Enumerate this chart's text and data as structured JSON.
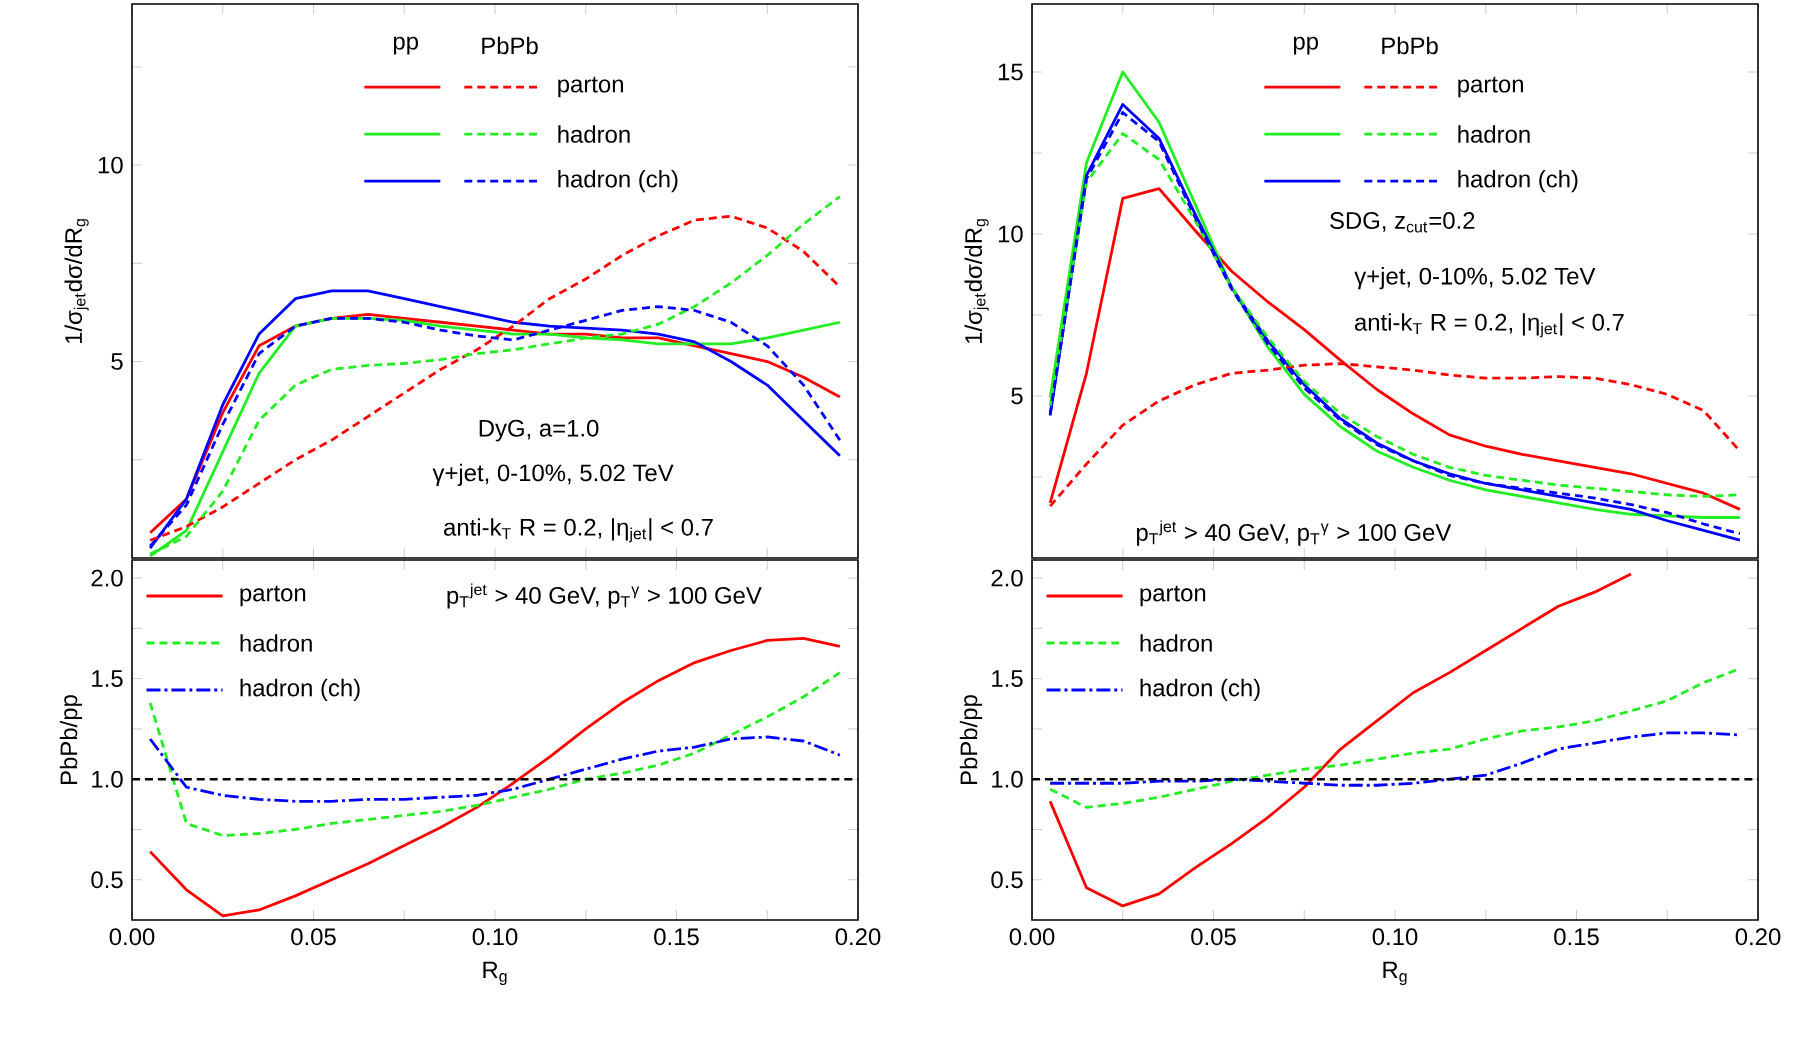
{
  "chart_data": [
    {
      "type": "line",
      "ylabel": "1/σ$_{jet}$dσ/dR$_{g}$",
      "x": [
        0.005,
        0.015,
        0.025,
        0.035,
        0.045,
        0.055,
        0.065,
        0.075,
        0.085,
        0.095,
        0.105,
        0.115,
        0.125,
        0.135,
        0.145,
        0.155,
        0.165,
        0.175,
        0.185,
        0.195
      ],
      "xlim": [
        0,
        0.2
      ],
      "ylim": [
        0,
        14.1
      ],
      "tick_labels": "y",
      "legend": "top",
      "xticks": [
        0,
        {
          "value": 0.025,
          "label": null
        },
        0.05,
        {
          "value": 0.075,
          "label": null
        },
        0.1,
        {
          "value": 0.125,
          "label": null
        },
        0.15,
        {
          "value": 0.175,
          "label": null
        },
        0.2
      ],
      "yticks": [
        {
          "value": 2.5,
          "label": null
        },
        5,
        {
          "value": 7.5,
          "label": null
        },
        10,
        {
          "value": 12.5,
          "label": null
        }
      ],
      "annotations": [
        "pp",
        "PbPb",
        "DyG, a=1.0",
        "γ+jet, 0-10%, 5.02 TeV",
        "anti-k$_{T}$ R = 0.2, |η$_{jet}$| < 0.7"
      ],
      "series": [
        {
          "name": "parton",
          "color": "#ff0000",
          "line_style": "solid",
          "values": [
            0.64,
            1.5,
            3.7,
            5.4,
            5.9,
            6.1,
            6.2,
            6.1,
            6.0,
            5.9,
            5.8,
            5.7,
            5.7,
            5.6,
            5.6,
            5.4,
            5.2,
            5.0,
            4.6,
            4.1
          ]
        },
        {
          "name": "hadron",
          "color": "#22ee22",
          "line_style": "solid",
          "values": [
            0.05,
            0.7,
            2.7,
            4.7,
            5.9,
            6.1,
            6.1,
            6.05,
            5.9,
            5.8,
            5.7,
            5.7,
            5.6,
            5.55,
            5.45,
            5.45,
            5.45,
            5.6,
            5.8,
            6.0
          ]
        },
        {
          "name": "hadron (ch)",
          "color": "#0000ff",
          "line_style": "solid",
          "values": [
            0.25,
            1.5,
            3.9,
            5.7,
            6.6,
            6.8,
            6.8,
            6.6,
            6.4,
            6.2,
            6.0,
            5.9,
            5.85,
            5.8,
            5.7,
            5.5,
            5.0,
            4.4,
            3.5,
            2.6
          ]
        },
        {
          "color": "#ff0000",
          "line_style": "dashed",
          "values": [
            0.45,
            0.8,
            1.3,
            1.9,
            2.5,
            3.0,
            3.6,
            4.2,
            4.8,
            5.3,
            5.9,
            6.6,
            7.1,
            7.7,
            8.2,
            8.6,
            8.7,
            8.4,
            7.8,
            6.9
          ]
        },
        {
          "color": "#22ee22",
          "line_style": "dashed",
          "values": [
            0.1,
            0.55,
            1.7,
            3.5,
            4.4,
            4.8,
            4.9,
            4.95,
            5.05,
            5.2,
            5.3,
            5.45,
            5.6,
            5.7,
            5.95,
            6.4,
            7.0,
            7.7,
            8.5,
            9.2
          ]
        },
        {
          "color": "#0000ff",
          "line_style": "dashed",
          "values": [
            0.3,
            1.35,
            3.4,
            5.2,
            5.9,
            6.1,
            6.1,
            6.0,
            5.8,
            5.65,
            5.55,
            5.8,
            6.05,
            6.3,
            6.4,
            6.3,
            6.0,
            5.4,
            4.4,
            3.0
          ]
        }
      ]
    },
    {
      "type": "line",
      "ylabel": "1/σ$_{jet}$dσ/dR$_{g}$",
      "x": [
        0.005,
        0.015,
        0.025,
        0.035,
        0.045,
        0.055,
        0.065,
        0.075,
        0.085,
        0.095,
        0.105,
        0.115,
        0.125,
        0.135,
        0.145,
        0.155,
        0.165,
        0.175,
        0.185,
        0.195
      ],
      "xlim": [
        0,
        0.2
      ],
      "ylim": [
        0,
        17.1
      ],
      "tick_labels": "y",
      "legend": "top",
      "xticks": [
        0,
        {
          "value": 0.025,
          "label": null
        },
        0.05,
        {
          "value": 0.075,
          "label": null
        },
        0.1,
        {
          "value": 0.125,
          "label": null
        },
        0.15,
        {
          "value": 0.175,
          "label": null
        },
        0.2
      ],
      "yticks": [
        {
          "value": 2.5,
          "label": null
        },
        5,
        {
          "value": 7.5,
          "label": null
        },
        10,
        {
          "value": 12.5,
          "label": null
        },
        15
      ],
      "annotations": [
        "pp",
        "PbPb",
        "SDG, z$_{cut}$=0.2",
        "γ+jet, 0-10%, 5.02 TeV",
        "anti-k$_{T}$ R = 0.2, |η$_{jet}$| < 0.7",
        "p$_{T}$$^{jet}$ > 40 GeV, p$_{T}$$^{γ}$ > 100 GeV"
      ],
      "series": [
        {
          "name": "parton",
          "color": "#ff0000",
          "line_style": "solid",
          "values": [
            1.7,
            5.7,
            11.1,
            11.4,
            10.1,
            8.85,
            7.9,
            7.05,
            6.1,
            5.2,
            4.45,
            3.8,
            3.45,
            3.2,
            3.0,
            2.8,
            2.6,
            2.3,
            2.0,
            1.5
          ]
        },
        {
          "name": "hadron",
          "color": "#22ee22",
          "line_style": "solid",
          "values": [
            4.95,
            12.2,
            15.0,
            13.45,
            10.9,
            8.35,
            6.5,
            5.05,
            4.05,
            3.3,
            2.8,
            2.4,
            2.1,
            1.9,
            1.7,
            1.5,
            1.35,
            1.3,
            1.25,
            1.25
          ]
        },
        {
          "name": "hadron (ch)",
          "color": "#0000ff",
          "line_style": "solid",
          "values": [
            4.4,
            11.8,
            14.0,
            12.95,
            10.6,
            8.35,
            6.7,
            5.35,
            4.3,
            3.55,
            3.0,
            2.6,
            2.3,
            2.1,
            1.9,
            1.7,
            1.5,
            1.15,
            0.85,
            0.55
          ]
        },
        {
          "color": "#ff0000",
          "line_style": "dashed",
          "values": [
            1.6,
            2.9,
            4.1,
            4.85,
            5.35,
            5.7,
            5.8,
            5.95,
            6.0,
            5.9,
            5.8,
            5.65,
            5.55,
            5.55,
            5.6,
            5.55,
            5.35,
            5.05,
            4.55,
            3.3
          ]
        },
        {
          "color": "#22ee22",
          "line_style": "dashed",
          "values": [
            4.7,
            11.6,
            13.1,
            12.3,
            10.4,
            8.35,
            6.8,
            5.45,
            4.45,
            3.75,
            3.2,
            2.8,
            2.55,
            2.4,
            2.25,
            2.15,
            2.05,
            1.95,
            1.9,
            1.95
          ]
        },
        {
          "color": "#0000ff",
          "line_style": "dashed",
          "values": [
            4.45,
            11.7,
            13.75,
            12.85,
            10.5,
            8.3,
            6.6,
            5.25,
            4.25,
            3.5,
            3.0,
            2.55,
            2.3,
            2.15,
            2.0,
            1.85,
            1.65,
            1.4,
            1.05,
            0.75
          ]
        }
      ]
    },
    {
      "type": "line",
      "xlabel": "R$_{g}$",
      "ylabel": "PbPb/pp",
      "x": [
        0.005,
        0.015,
        0.025,
        0.035,
        0.045,
        0.055,
        0.065,
        0.075,
        0.085,
        0.095,
        0.105,
        0.115,
        0.125,
        0.135,
        0.145,
        0.155,
        0.165,
        0.175,
        0.185,
        0.195
      ],
      "xlim": [
        0,
        0.2
      ],
      "ylim": [
        0.3,
        2.09
      ],
      "legend": "top left",
      "xticks": [
        {
          "value": 0,
          "label": "0.00"
        },
        {
          "value": 0.025,
          "label": null
        },
        {
          "value": 0.05,
          "label": "0.05"
        },
        {
          "value": 0.075,
          "label": null
        },
        {
          "value": 0.1,
          "label": "0.10"
        },
        {
          "value": 0.125,
          "label": null
        },
        {
          "value": 0.15,
          "label": "0.15"
        },
        {
          "value": 0.175,
          "label": null
        },
        {
          "value": 0.2,
          "label": "0.20"
        }
      ],
      "yticks": [
        0.5,
        {
          "value": 0.75,
          "label": null
        },
        {
          "value": 1,
          "label": "1.0"
        },
        {
          "value": 1.25,
          "label": null
        },
        1.5,
        {
          "value": 1.75,
          "label": null
        },
        {
          "value": 2,
          "label": "2.0"
        }
      ],
      "annotations": [
        "p$_{T}$$^{jet}$ > 40 GeV, p$_{T}$$^{γ}$ > 100 GeV"
      ],
      "ref_lines": [
        {
          "axis": "y",
          "value": 1,
          "color": "#000000",
          "line_style": "dashed"
        }
      ],
      "series": [
        {
          "name": "parton",
          "color": "#ff0000",
          "line_style": "solid",
          "values": [
            0.64,
            0.45,
            0.32,
            0.35,
            0.42,
            0.5,
            0.58,
            0.67,
            0.76,
            0.86,
            0.98,
            1.11,
            1.25,
            1.38,
            1.49,
            1.58,
            1.64,
            1.69,
            1.7,
            1.66
          ]
        },
        {
          "name": "hadron",
          "color": "#22ee22",
          "line_style": "dashed",
          "values": [
            1.38,
            0.78,
            0.72,
            0.73,
            0.75,
            0.78,
            0.8,
            0.82,
            0.84,
            0.87,
            0.91,
            0.95,
            1.0,
            1.03,
            1.07,
            1.13,
            1.22,
            1.31,
            1.41,
            1.53
          ]
        },
        {
          "name": "hadron (ch)",
          "color": "#0000ff",
          "line_style": "dashdot",
          "values": [
            1.2,
            0.96,
            0.92,
            0.9,
            0.89,
            0.89,
            0.9,
            0.9,
            0.91,
            0.92,
            0.95,
            1.0,
            1.05,
            1.1,
            1.14,
            1.16,
            1.2,
            1.21,
            1.19,
            1.12
          ]
        }
      ]
    },
    {
      "type": "line",
      "xlabel": "R$_{g}$",
      "ylabel": "PbPb/pp",
      "x": [
        0.005,
        0.015,
        0.025,
        0.035,
        0.045,
        0.055,
        0.065,
        0.075,
        0.085,
        0.095,
        0.105,
        0.115,
        0.125,
        0.135,
        0.145,
        0.155,
        0.165,
        0.175,
        0.185,
        0.195
      ],
      "xlim": [
        0,
        0.2
      ],
      "ylim": [
        0.3,
        2.09
      ],
      "legend": "top left",
      "xticks": [
        {
          "value": 0,
          "label": "0.00"
        },
        {
          "value": 0.025,
          "label": null
        },
        {
          "value": 0.05,
          "label": "0.05"
        },
        {
          "value": 0.075,
          "label": null
        },
        {
          "value": 0.1,
          "label": "0.10"
        },
        {
          "value": 0.125,
          "label": null
        },
        {
          "value": 0.15,
          "label": "0.15"
        },
        {
          "value": 0.175,
          "label": null
        },
        {
          "value": 0.2,
          "label": "0.20"
        }
      ],
      "yticks": [
        0.5,
        {
          "value": 0.75,
          "label": null
        },
        {
          "value": 1,
          "label": "1.0"
        },
        {
          "value": 1.25,
          "label": null
        },
        1.5,
        {
          "value": 1.75,
          "label": null
        },
        {
          "value": 2,
          "label": "2.0"
        }
      ],
      "ref_lines": [
        {
          "axis": "y",
          "value": 1,
          "color": "#000000",
          "line_style": "dashed"
        }
      ],
      "series": [
        {
          "name": "parton",
          "color": "#ff0000",
          "line_style": "solid",
          "values": [
            0.89,
            0.46,
            0.37,
            0.43,
            0.56,
            0.68,
            0.81,
            0.96,
            1.15,
            1.29,
            1.43,
            1.53,
            1.64,
            1.75,
            1.86,
            1.93,
            2.02,
            null,
            null,
            null
          ]
        },
        {
          "name": "hadron",
          "color": "#22ee22",
          "line_style": "dashed",
          "values": [
            0.95,
            0.86,
            0.88,
            0.91,
            0.95,
            0.99,
            1.02,
            1.05,
            1.07,
            1.1,
            1.13,
            1.15,
            1.2,
            1.24,
            1.26,
            1.29,
            1.34,
            1.39,
            1.48,
            1.55
          ]
        },
        {
          "name": "hadron (ch)",
          "color": "#0000ff",
          "line_style": "dashdot",
          "values": [
            0.98,
            0.98,
            0.98,
            0.99,
            0.99,
            1.0,
            0.99,
            0.98,
            0.97,
            0.97,
            0.98,
            1.0,
            1.02,
            1.08,
            1.15,
            1.18,
            1.21,
            1.23,
            1.23,
            1.22
          ]
        }
      ]
    }
  ]
}
